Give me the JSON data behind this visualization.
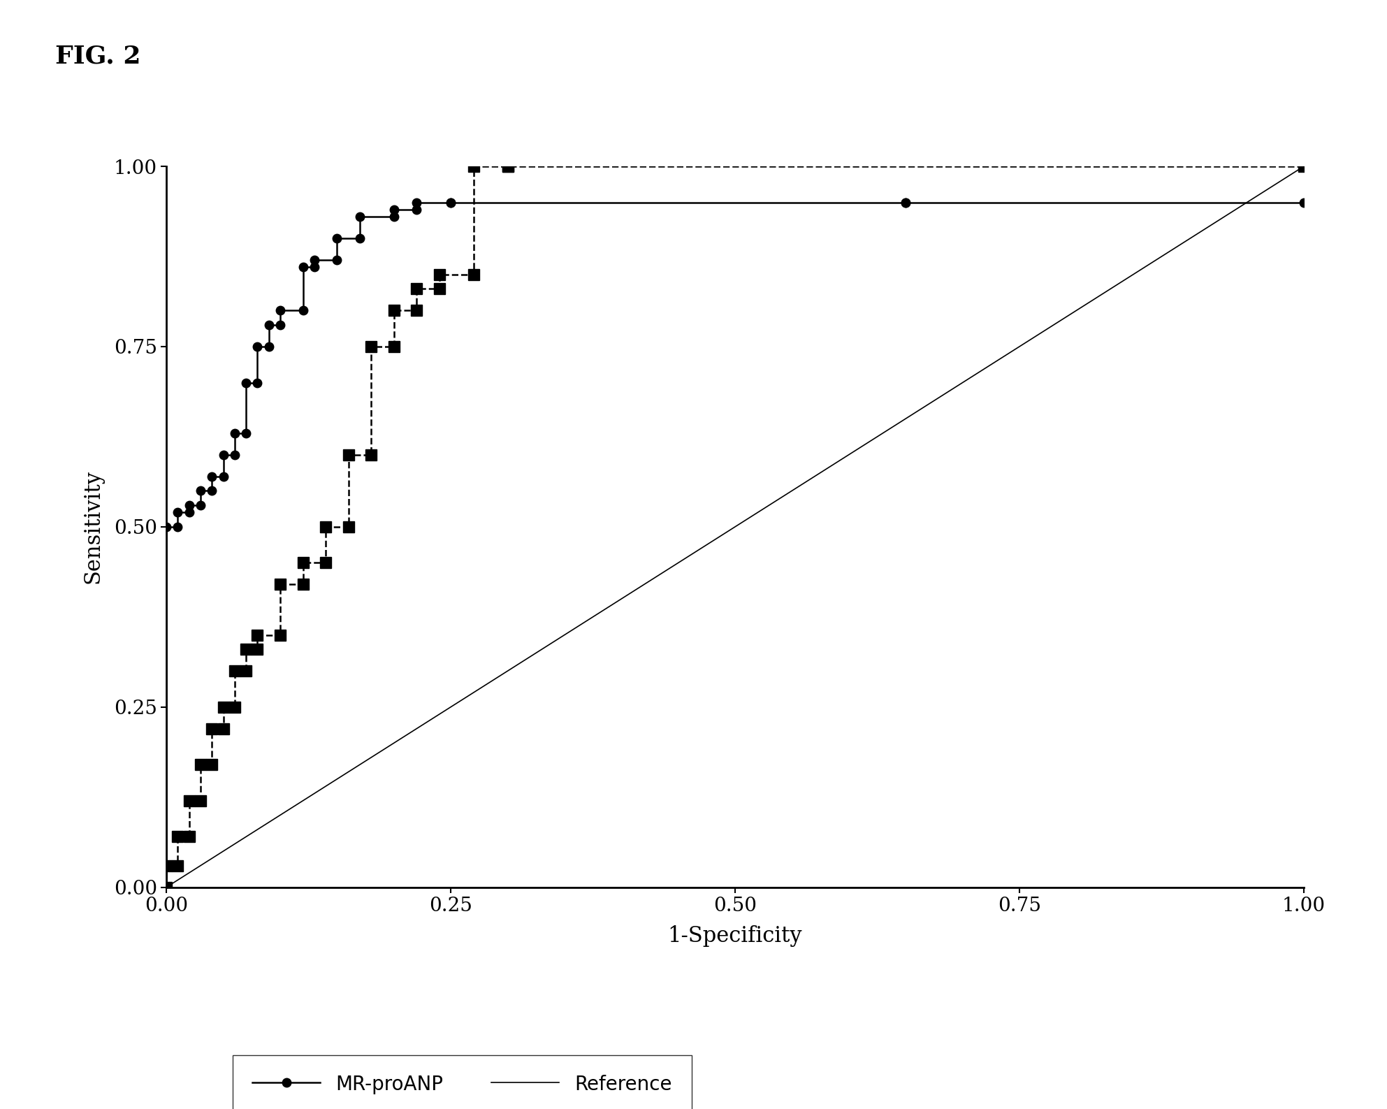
{
  "title": "Fig. 2",
  "xlabel": "1-Specificity",
  "ylabel": "Sensitivity",
  "xlim": [
    0.0,
    1.0
  ],
  "ylim": [
    0.0,
    1.0
  ],
  "xticks": [
    0.0,
    0.25,
    0.5,
    0.75,
    1.0
  ],
  "yticks": [
    0.0,
    0.25,
    0.5,
    0.75,
    1.0
  ],
  "mr_proANP_x": [
    0.0,
    0.0,
    0.01,
    0.01,
    0.02,
    0.02,
    0.03,
    0.03,
    0.04,
    0.04,
    0.05,
    0.05,
    0.06,
    0.06,
    0.07,
    0.07,
    0.08,
    0.08,
    0.09,
    0.09,
    0.1,
    0.1,
    0.12,
    0.12,
    0.13,
    0.13,
    0.15,
    0.15,
    0.17,
    0.17,
    0.2,
    0.2,
    0.22,
    0.22,
    0.25,
    0.25,
    0.65,
    0.65,
    1.0
  ],
  "mr_proANP_y": [
    0.0,
    0.5,
    0.5,
    0.52,
    0.52,
    0.53,
    0.53,
    0.55,
    0.55,
    0.57,
    0.57,
    0.6,
    0.6,
    0.63,
    0.63,
    0.7,
    0.7,
    0.75,
    0.75,
    0.78,
    0.78,
    0.8,
    0.8,
    0.86,
    0.86,
    0.87,
    0.87,
    0.9,
    0.9,
    0.93,
    0.93,
    0.94,
    0.94,
    0.95,
    0.95,
    0.95,
    0.95,
    0.95,
    0.95
  ],
  "nt_proBNP_x": [
    0.0,
    0.0,
    0.01,
    0.01,
    0.02,
    0.02,
    0.03,
    0.03,
    0.04,
    0.04,
    0.05,
    0.05,
    0.06,
    0.06,
    0.07,
    0.07,
    0.08,
    0.08,
    0.1,
    0.1,
    0.12,
    0.12,
    0.14,
    0.14,
    0.16,
    0.16,
    0.18,
    0.18,
    0.2,
    0.2,
    0.22,
    0.22,
    0.24,
    0.24,
    0.27,
    0.27,
    0.3,
    0.3,
    1.0
  ],
  "nt_proBNP_y": [
    0.0,
    0.03,
    0.03,
    0.07,
    0.07,
    0.12,
    0.12,
    0.17,
    0.17,
    0.22,
    0.22,
    0.25,
    0.25,
    0.3,
    0.3,
    0.33,
    0.33,
    0.35,
    0.35,
    0.42,
    0.42,
    0.45,
    0.45,
    0.5,
    0.5,
    0.6,
    0.6,
    0.75,
    0.75,
    0.8,
    0.8,
    0.83,
    0.83,
    0.85,
    0.85,
    1.0,
    1.0,
    1.0,
    1.0
  ],
  "background_color": "#ffffff",
  "line_color": "#000000"
}
